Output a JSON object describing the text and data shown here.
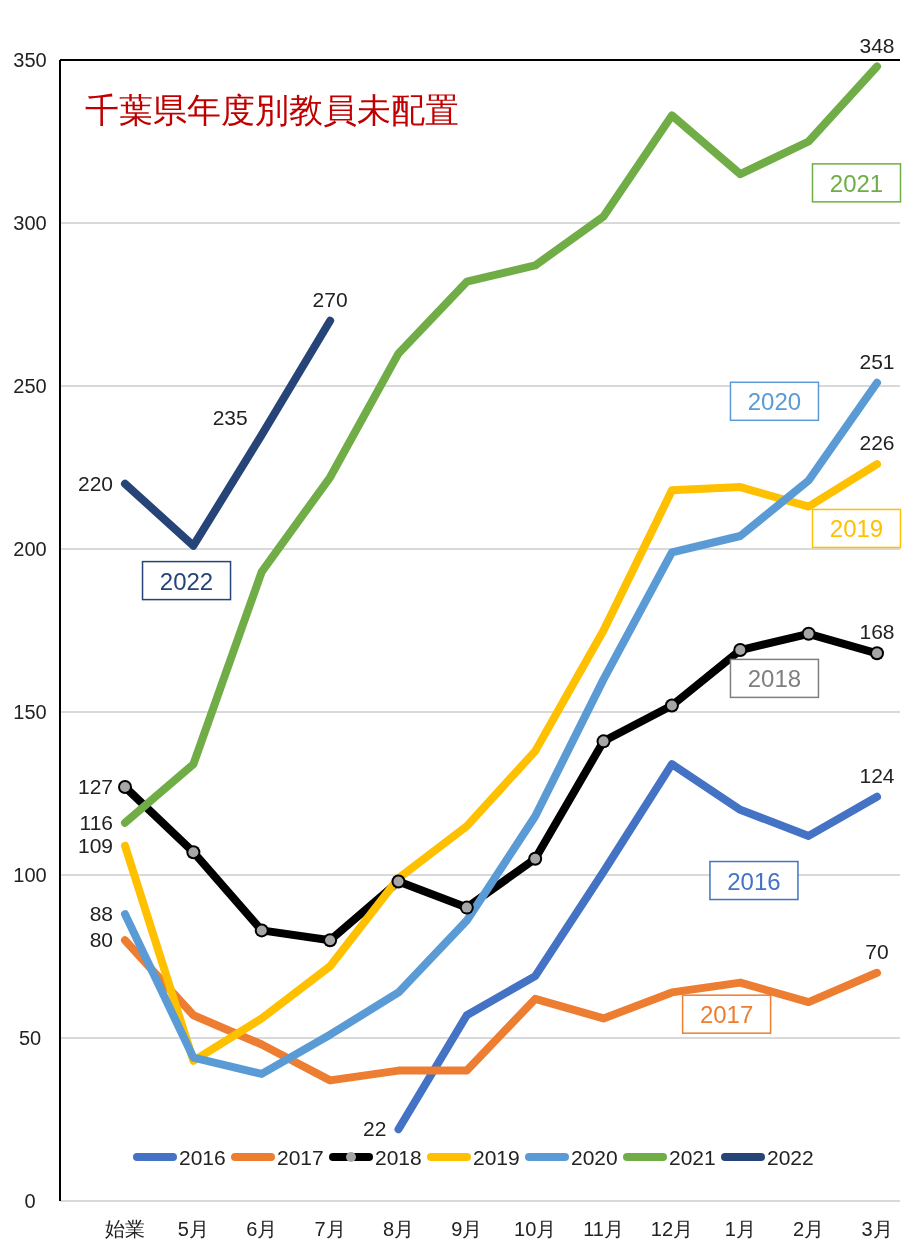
{
  "chart_data": {
    "type": "line",
    "title": "千葉県年度別教員未配置",
    "categories": [
      "始業",
      "5月",
      "6月",
      "7月",
      "8月",
      "9月",
      "10月",
      "11月",
      "12月",
      "1月",
      "2月",
      "3月"
    ],
    "series": [
      {
        "name": "2016",
        "color": "#4472c4",
        "values": [
          null,
          null,
          null,
          null,
          22,
          57,
          69,
          101,
          134,
          120,
          112,
          124
        ],
        "value_labels": [
          null,
          null,
          null,
          null,
          "22",
          null,
          null,
          null,
          null,
          null,
          null,
          "124"
        ]
      },
      {
        "name": "2017",
        "color": "#ed7d31",
        "values": [
          80,
          57,
          48,
          37,
          40,
          40,
          62,
          56,
          64,
          67,
          61,
          70
        ],
        "value_labels": [
          "80",
          null,
          null,
          null,
          null,
          null,
          null,
          null,
          null,
          null,
          null,
          "70"
        ]
      },
      {
        "name": "2018",
        "color": "#000000",
        "marker": "circle",
        "values": [
          127,
          107,
          83,
          80,
          98,
          90,
          105,
          141,
          152,
          169,
          174,
          168
        ],
        "value_labels": [
          "127",
          null,
          null,
          null,
          null,
          null,
          null,
          null,
          null,
          null,
          null,
          "168"
        ]
      },
      {
        "name": "2019",
        "color": "#ffc000",
        "values": [
          109,
          43,
          56,
          72,
          99,
          115,
          138,
          175,
          218,
          219,
          213,
          226
        ],
        "value_labels": [
          "109",
          null,
          null,
          null,
          null,
          null,
          null,
          null,
          null,
          null,
          null,
          "226"
        ]
      },
      {
        "name": "2020",
        "color": "#5b9bd5",
        "values": [
          88,
          44,
          39,
          51,
          64,
          86,
          118,
          160,
          199,
          204,
          221,
          251
        ],
        "value_labels": [
          "88",
          null,
          null,
          null,
          null,
          null,
          null,
          null,
          null,
          null,
          null,
          "251"
        ]
      },
      {
        "name": "2021",
        "color": "#70ad47",
        "values": [
          116,
          134,
          193,
          222,
          260,
          282,
          287,
          302,
          333,
          315,
          325,
          348
        ],
        "value_labels": [
          "116",
          null,
          null,
          null,
          null,
          null,
          null,
          null,
          null,
          null,
          null,
          "348"
        ]
      },
      {
        "name": "2022",
        "color": "#264478",
        "values": [
          220,
          201,
          235,
          270,
          null,
          null,
          null,
          null,
          null,
          null,
          null,
          null
        ],
        "value_labels": [
          "220",
          null,
          "235",
          "270",
          null,
          null,
          null,
          null,
          null,
          null,
          null,
          null
        ]
      }
    ],
    "ylim": [
      0,
      350
    ],
    "yticks": [
      0,
      50,
      100,
      150,
      200,
      250,
      300,
      350
    ],
    "grid": "y",
    "legend": "bottom"
  }
}
